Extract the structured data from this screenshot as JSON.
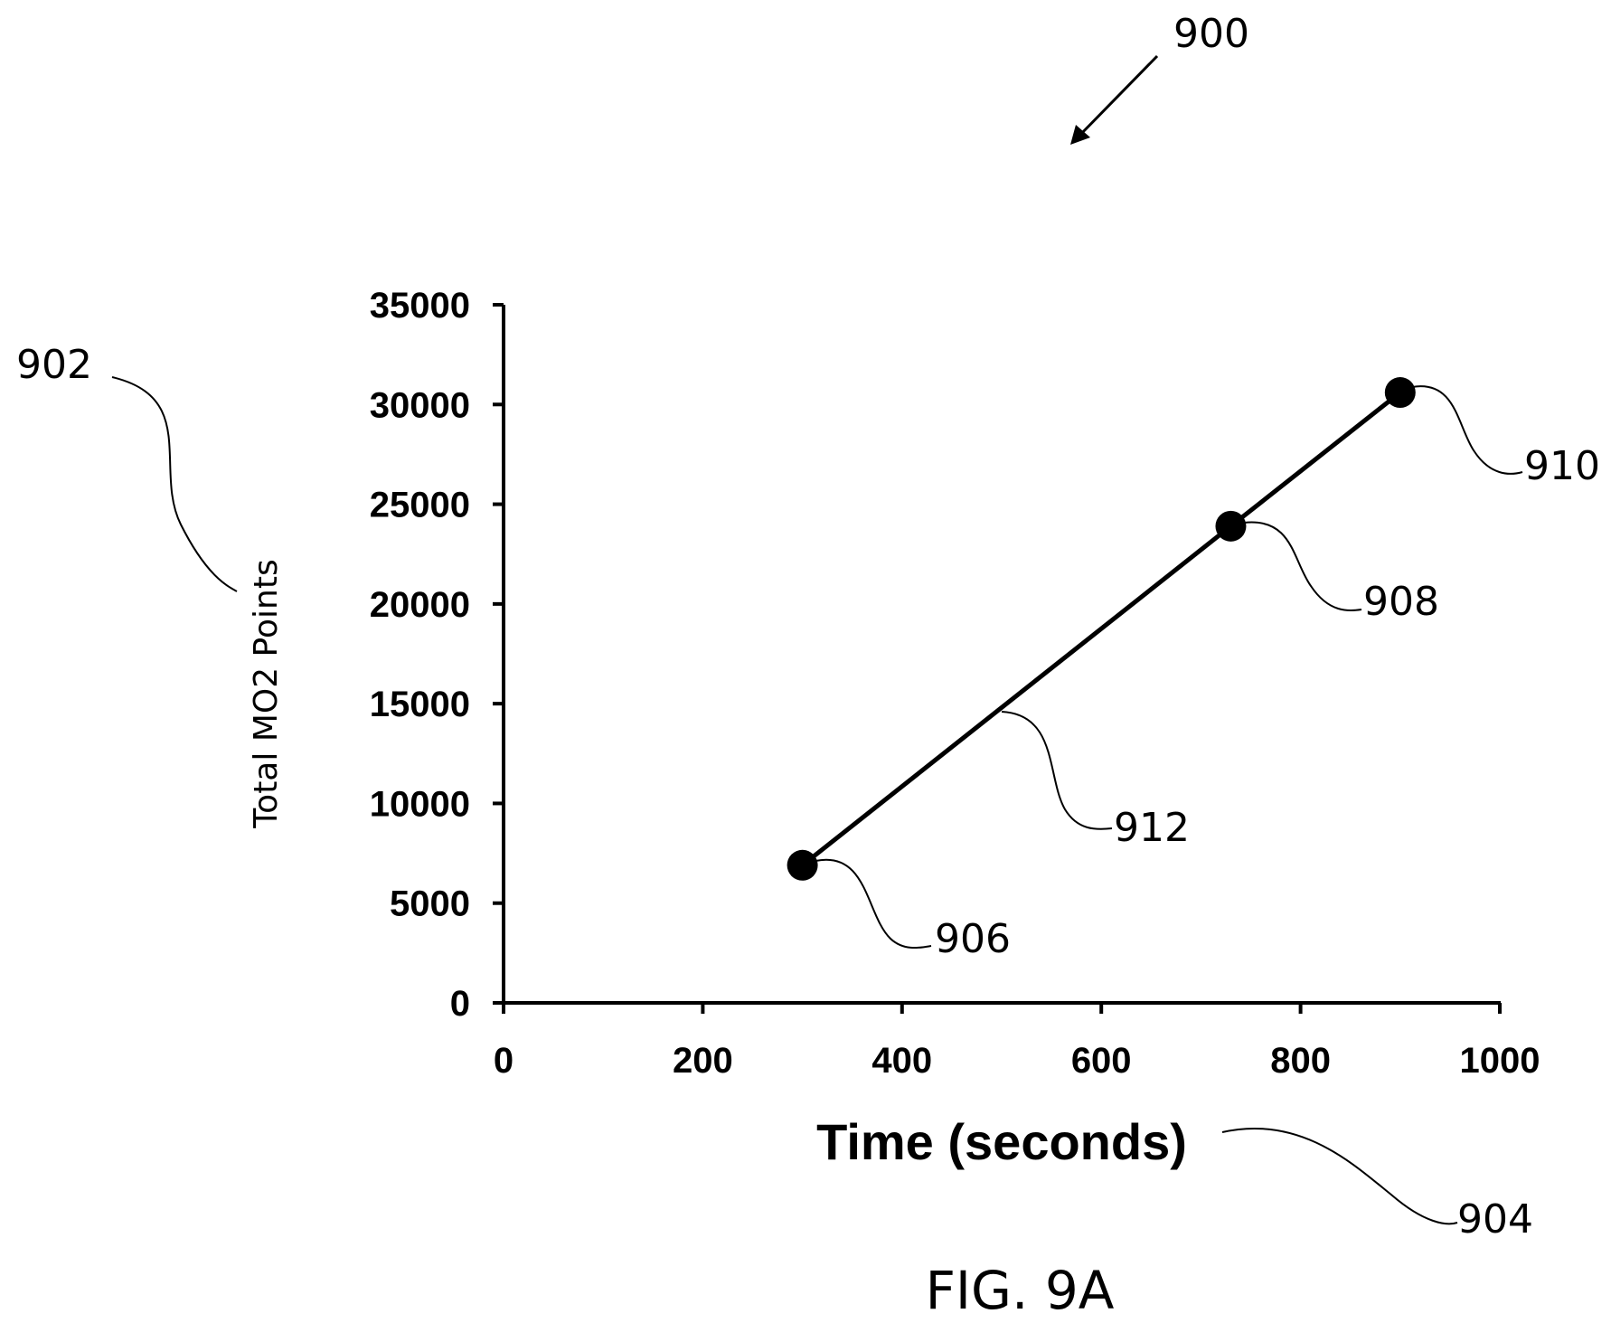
{
  "figure": {
    "ref_number": "900",
    "caption": "FIG. 9A"
  },
  "chart_data": {
    "type": "line",
    "title": "",
    "xlabel": "Time (seconds)",
    "ylabel": "Total MO2 Points",
    "xlim": [
      0,
      1000
    ],
    "ylim": [
      0,
      35000
    ],
    "x_ticks": [
      0,
      200,
      400,
      600,
      800,
      1000
    ],
    "y_ticks": [
      0,
      5000,
      10000,
      15000,
      20000,
      25000,
      30000,
      35000
    ],
    "grid": false,
    "series": [
      {
        "points": [
          {
            "x": 300,
            "y": 6900
          },
          {
            "x": 730,
            "y": 23900
          },
          {
            "x": 900,
            "y": 30600
          }
        ]
      }
    ]
  },
  "references": {
    "ylabel_ref": "902",
    "xlabel_ref": "904",
    "point_refs": [
      "906",
      "908",
      "910"
    ],
    "line_ref": "912"
  }
}
